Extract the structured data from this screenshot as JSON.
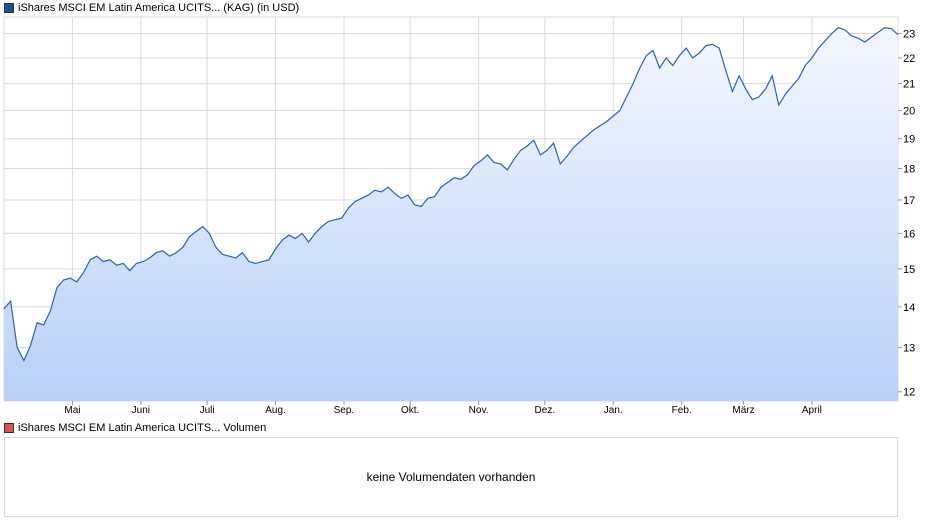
{
  "colors": {
    "price_swatch": "#1f4e9e",
    "volume_swatch": "#d9534f",
    "line": "#2a62b8",
    "fill_top": "#f4f8ff",
    "fill_bottom": "#b9d0f7",
    "grid": "#dcdcdc"
  },
  "legend": {
    "price_label": "iShares MSCI EM Latin America UCITS... (KAG) (in USD)",
    "volume_label": "iShares MSCI EM Latin America UCITS... Volumen"
  },
  "volume": {
    "message": "keine Volumendaten vorhanden"
  },
  "chart_data": {
    "type": "area",
    "y_scale": "log",
    "ylim": [
      11.8,
      23.7
    ],
    "yticks": [
      12,
      13,
      14,
      15,
      16,
      17,
      18,
      19,
      20,
      21,
      22,
      23
    ],
    "y_axis_position": "right",
    "grid": true,
    "xlim": [
      0,
      405
    ],
    "xticks": [
      {
        "label": "Mai",
        "x": 31
      },
      {
        "label": "Juni",
        "x": 62
      },
      {
        "label": "Juli",
        "x": 92
      },
      {
        "label": "Aug.",
        "x": 123
      },
      {
        "label": "Sep.",
        "x": 154
      },
      {
        "label": "Okt.",
        "x": 184
      },
      {
        "label": "Nov.",
        "x": 215
      },
      {
        "label": "Dez.",
        "x": 245
      },
      {
        "label": "Jan.",
        "x": 276
      },
      {
        "label": "Feb.",
        "x": 307
      },
      {
        "label": "März",
        "x": 335
      },
      {
        "label": "April",
        "x": 366
      }
    ],
    "x": [
      0,
      3,
      6,
      9,
      12,
      15,
      18,
      21,
      24,
      27,
      30,
      33,
      36,
      39,
      42,
      45,
      48,
      51,
      54,
      57,
      60,
      63,
      66,
      69,
      72,
      75,
      78,
      81,
      84,
      87,
      90,
      93,
      96,
      99,
      102,
      105,
      108,
      111,
      114,
      117,
      120,
      123,
      126,
      129,
      132,
      135,
      138,
      141,
      144,
      147,
      150,
      153,
      156,
      159,
      162,
      165,
      168,
      171,
      174,
      177,
      180,
      183,
      186,
      189,
      192,
      195,
      198,
      201,
      204,
      207,
      210,
      213,
      216,
      219,
      222,
      225,
      228,
      231,
      234,
      237,
      240,
      243,
      246,
      249,
      252,
      255,
      258,
      261,
      264,
      267,
      270,
      273,
      276,
      279,
      282,
      285,
      288,
      291,
      294,
      297,
      300,
      303,
      306,
      309,
      312,
      315,
      318,
      321,
      324,
      327,
      330,
      333,
      336,
      339,
      342,
      345,
      348,
      351,
      354,
      357,
      360,
      363,
      366,
      369,
      372,
      375,
      378,
      381,
      384,
      387,
      390,
      393,
      396,
      399,
      402,
      405
    ],
    "series": [
      {
        "values": [
          13.95,
          14.15,
          13.0,
          12.7,
          13.05,
          13.6,
          13.55,
          13.9,
          14.5,
          14.7,
          14.75,
          14.65,
          14.9,
          15.25,
          15.35,
          15.2,
          15.25,
          15.1,
          15.15,
          14.95,
          15.15,
          15.2,
          15.3,
          15.45,
          15.5,
          15.35,
          15.45,
          15.6,
          15.9,
          16.05,
          16.2,
          16.0,
          15.6,
          15.4,
          15.35,
          15.3,
          15.45,
          15.2,
          15.15,
          15.2,
          15.25,
          15.55,
          15.8,
          15.95,
          15.85,
          16.0,
          15.75,
          16.0,
          16.2,
          16.35,
          16.4,
          16.45,
          16.75,
          16.95,
          17.05,
          17.15,
          17.3,
          17.25,
          17.4,
          17.2,
          17.05,
          17.15,
          16.85,
          16.8,
          17.05,
          17.1,
          17.4,
          17.55,
          17.7,
          17.65,
          17.8,
          18.1,
          18.25,
          18.45,
          18.2,
          18.15,
          17.95,
          18.3,
          18.6,
          18.75,
          18.95,
          18.45,
          18.6,
          18.85,
          18.15,
          18.4,
          18.7,
          18.9,
          19.1,
          19.3,
          19.45,
          19.6,
          19.8,
          20.0,
          20.5,
          21.0,
          21.6,
          22.1,
          22.3,
          21.6,
          22.0,
          21.7,
          22.1,
          22.4,
          22.0,
          22.2,
          22.5,
          22.55,
          22.4,
          21.5,
          20.7,
          21.3,
          20.8,
          20.4,
          20.5,
          20.8,
          21.3,
          20.2,
          20.6,
          20.9,
          21.2,
          21.7,
          22.0,
          22.4,
          22.7,
          23.0,
          23.25,
          23.15,
          22.9,
          22.8,
          22.65,
          22.85,
          23.05,
          23.25,
          23.2,
          22.95
        ]
      }
    ]
  }
}
